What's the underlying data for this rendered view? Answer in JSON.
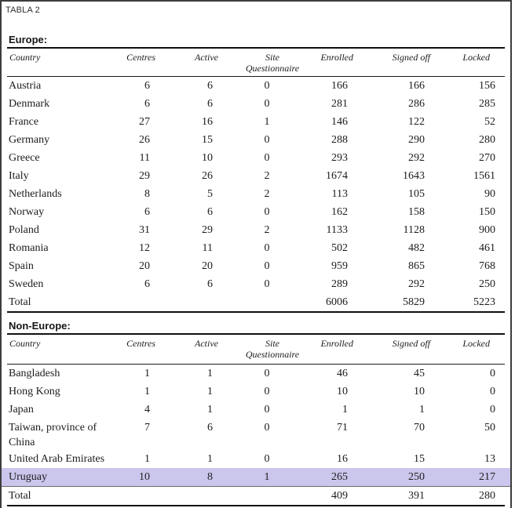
{
  "figure_label": "TABLA 2",
  "colors": {
    "highlight": "#cbc6ec",
    "rule": "#101010",
    "frame": "#3d3d3d",
    "text": "#1c1c1c"
  },
  "columns": {
    "country": "Country",
    "centres": "Centres",
    "active": "Active",
    "site_line1": "Site",
    "site_line2": "Questionnaire",
    "enrolled": "Enrolled",
    "signed_off": "Signed off",
    "locked": "Locked"
  },
  "sections": [
    {
      "title": "Europe:",
      "rows": [
        {
          "country": "Austria",
          "centres": "6",
          "active": "6",
          "site_questionnaire": "0",
          "enrolled": "166",
          "signed_off": "166",
          "locked": "156",
          "highlight": false
        },
        {
          "country": "Denmark",
          "centres": "6",
          "active": "6",
          "site_questionnaire": "0",
          "enrolled": "281",
          "signed_off": "286",
          "locked": "285",
          "highlight": false
        },
        {
          "country": "France",
          "centres": "27",
          "active": "16",
          "site_questionnaire": "1",
          "enrolled": "146",
          "signed_off": "122",
          "locked": "52",
          "highlight": false
        },
        {
          "country": "Germany",
          "centres": "26",
          "active": "15",
          "site_questionnaire": "0",
          "enrolled": "288",
          "signed_off": "290",
          "locked": "280",
          "highlight": false
        },
        {
          "country": "Greece",
          "centres": "11",
          "active": "10",
          "site_questionnaire": "0",
          "enrolled": "293",
          "signed_off": "292",
          "locked": "270",
          "highlight": false
        },
        {
          "country": "Italy",
          "centres": "29",
          "active": "26",
          "site_questionnaire": "2",
          "enrolled": "1674",
          "signed_off": "1643",
          "locked": "1561",
          "highlight": false
        },
        {
          "country": "Netherlands",
          "centres": "8",
          "active": "5",
          "site_questionnaire": "2",
          "enrolled": "113",
          "signed_off": "105",
          "locked": "90",
          "highlight": false
        },
        {
          "country": "Norway",
          "centres": "6",
          "active": "6",
          "site_questionnaire": "0",
          "enrolled": "162",
          "signed_off": "158",
          "locked": "150",
          "highlight": false
        },
        {
          "country": "Poland",
          "centres": "31",
          "active": "29",
          "site_questionnaire": "2",
          "enrolled": "1133",
          "signed_off": "1128",
          "locked": "900",
          "highlight": false
        },
        {
          "country": "Romania",
          "centres": "12",
          "active": "11",
          "site_questionnaire": "0",
          "enrolled": "502",
          "signed_off": "482",
          "locked": "461",
          "highlight": false
        },
        {
          "country": "Spain",
          "centres": "20",
          "active": "20",
          "site_questionnaire": "0",
          "enrolled": "959",
          "signed_off": "865",
          "locked": "768",
          "highlight": false
        },
        {
          "country": "Sweden",
          "centres": "6",
          "active": "6",
          "site_questionnaire": "0",
          "enrolled": "289",
          "signed_off": "292",
          "locked": "250",
          "highlight": false
        },
        {
          "country": "Total",
          "centres": "",
          "active": "",
          "site_questionnaire": "",
          "enrolled": "6006",
          "signed_off": "5829",
          "locked": "5223",
          "highlight": false
        }
      ]
    },
    {
      "title": "Non-Europe:",
      "rows": [
        {
          "country": "Bangladesh",
          "centres": "1",
          "active": "1",
          "site_questionnaire": "0",
          "enrolled": "46",
          "signed_off": "45",
          "locked": "0",
          "highlight": false
        },
        {
          "country": "Hong Kong",
          "centres": "1",
          "active": "1",
          "site_questionnaire": "0",
          "enrolled": "10",
          "signed_off": "10",
          "locked": "0",
          "highlight": false
        },
        {
          "country": "Japan",
          "centres": "4",
          "active": "1",
          "site_questionnaire": "0",
          "enrolled": "1",
          "signed_off": "1",
          "locked": "0",
          "highlight": false
        },
        {
          "country": "Taiwan, province of China",
          "centres": "7",
          "active": "6",
          "site_questionnaire": "0",
          "enrolled": "71",
          "signed_off": "70",
          "locked": "50",
          "highlight": false
        },
        {
          "country": "United Arab Emirates",
          "centres": "1",
          "active": "1",
          "site_questionnaire": "0",
          "enrolled": "16",
          "signed_off": "15",
          "locked": "13",
          "highlight": false
        },
        {
          "country": "Uruguay",
          "centres": "10",
          "active": "8",
          "site_questionnaire": "1",
          "enrolled": "265",
          "signed_off": "250",
          "locked": "217",
          "highlight": true
        },
        {
          "country": "Total",
          "centres": "",
          "active": "",
          "site_questionnaire": "",
          "enrolled": "409",
          "signed_off": "391",
          "locked": "280",
          "highlight": false
        }
      ]
    }
  ]
}
